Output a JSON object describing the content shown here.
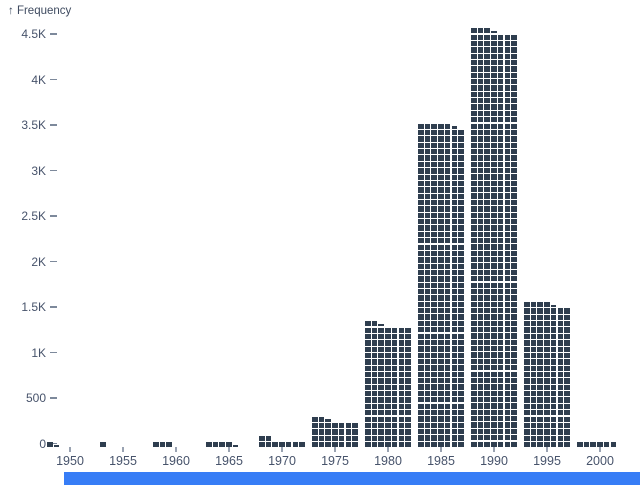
{
  "chart_data": {
    "type": "bar",
    "subtype": "waffle-histogram",
    "title": "",
    "ylabel": "↑ Frequency",
    "xlabel": "",
    "categories": [
      1950,
      1955,
      1960,
      1965,
      1970,
      1975,
      1980,
      1985,
      1990,
      1995,
      2000
    ],
    "values": [
      15,
      10,
      30,
      45,
      90,
      305,
      1355,
      3555,
      4585,
      1585,
      60
    ],
    "bin_width_years": 5,
    "unit_per_cell": 10,
    "cells_per_row": 7,
    "ylim": [
      0,
      4500
    ],
    "grid": false,
    "legend": false,
    "y_ticks": [
      {
        "value": 0,
        "label": "0"
      },
      {
        "value": 500,
        "label": "500"
      },
      {
        "value": 1000,
        "label": "1K"
      },
      {
        "value": 1500,
        "label": "1.5K"
      },
      {
        "value": 2000,
        "label": "2K"
      },
      {
        "value": 2500,
        "label": "2.5K"
      },
      {
        "value": 3000,
        "label": "3K"
      },
      {
        "value": 3500,
        "label": "3.5K"
      },
      {
        "value": 4000,
        "label": "4K"
      },
      {
        "value": 4500,
        "label": "4.5K"
      }
    ],
    "x_tick_labels": [
      "1950",
      "1955",
      "1960",
      "1965",
      "1970",
      "1975",
      "1980",
      "1985",
      "1990",
      "1995",
      "2000"
    ],
    "colors": {
      "cell": "#2f3e4f",
      "axis_text": "#47536b",
      "tick_mark": "#9aa3b2",
      "background": "#ffffff",
      "bottom_bar": "#377df6"
    }
  },
  "footer": {
    "bottom_bar_present": true
  }
}
